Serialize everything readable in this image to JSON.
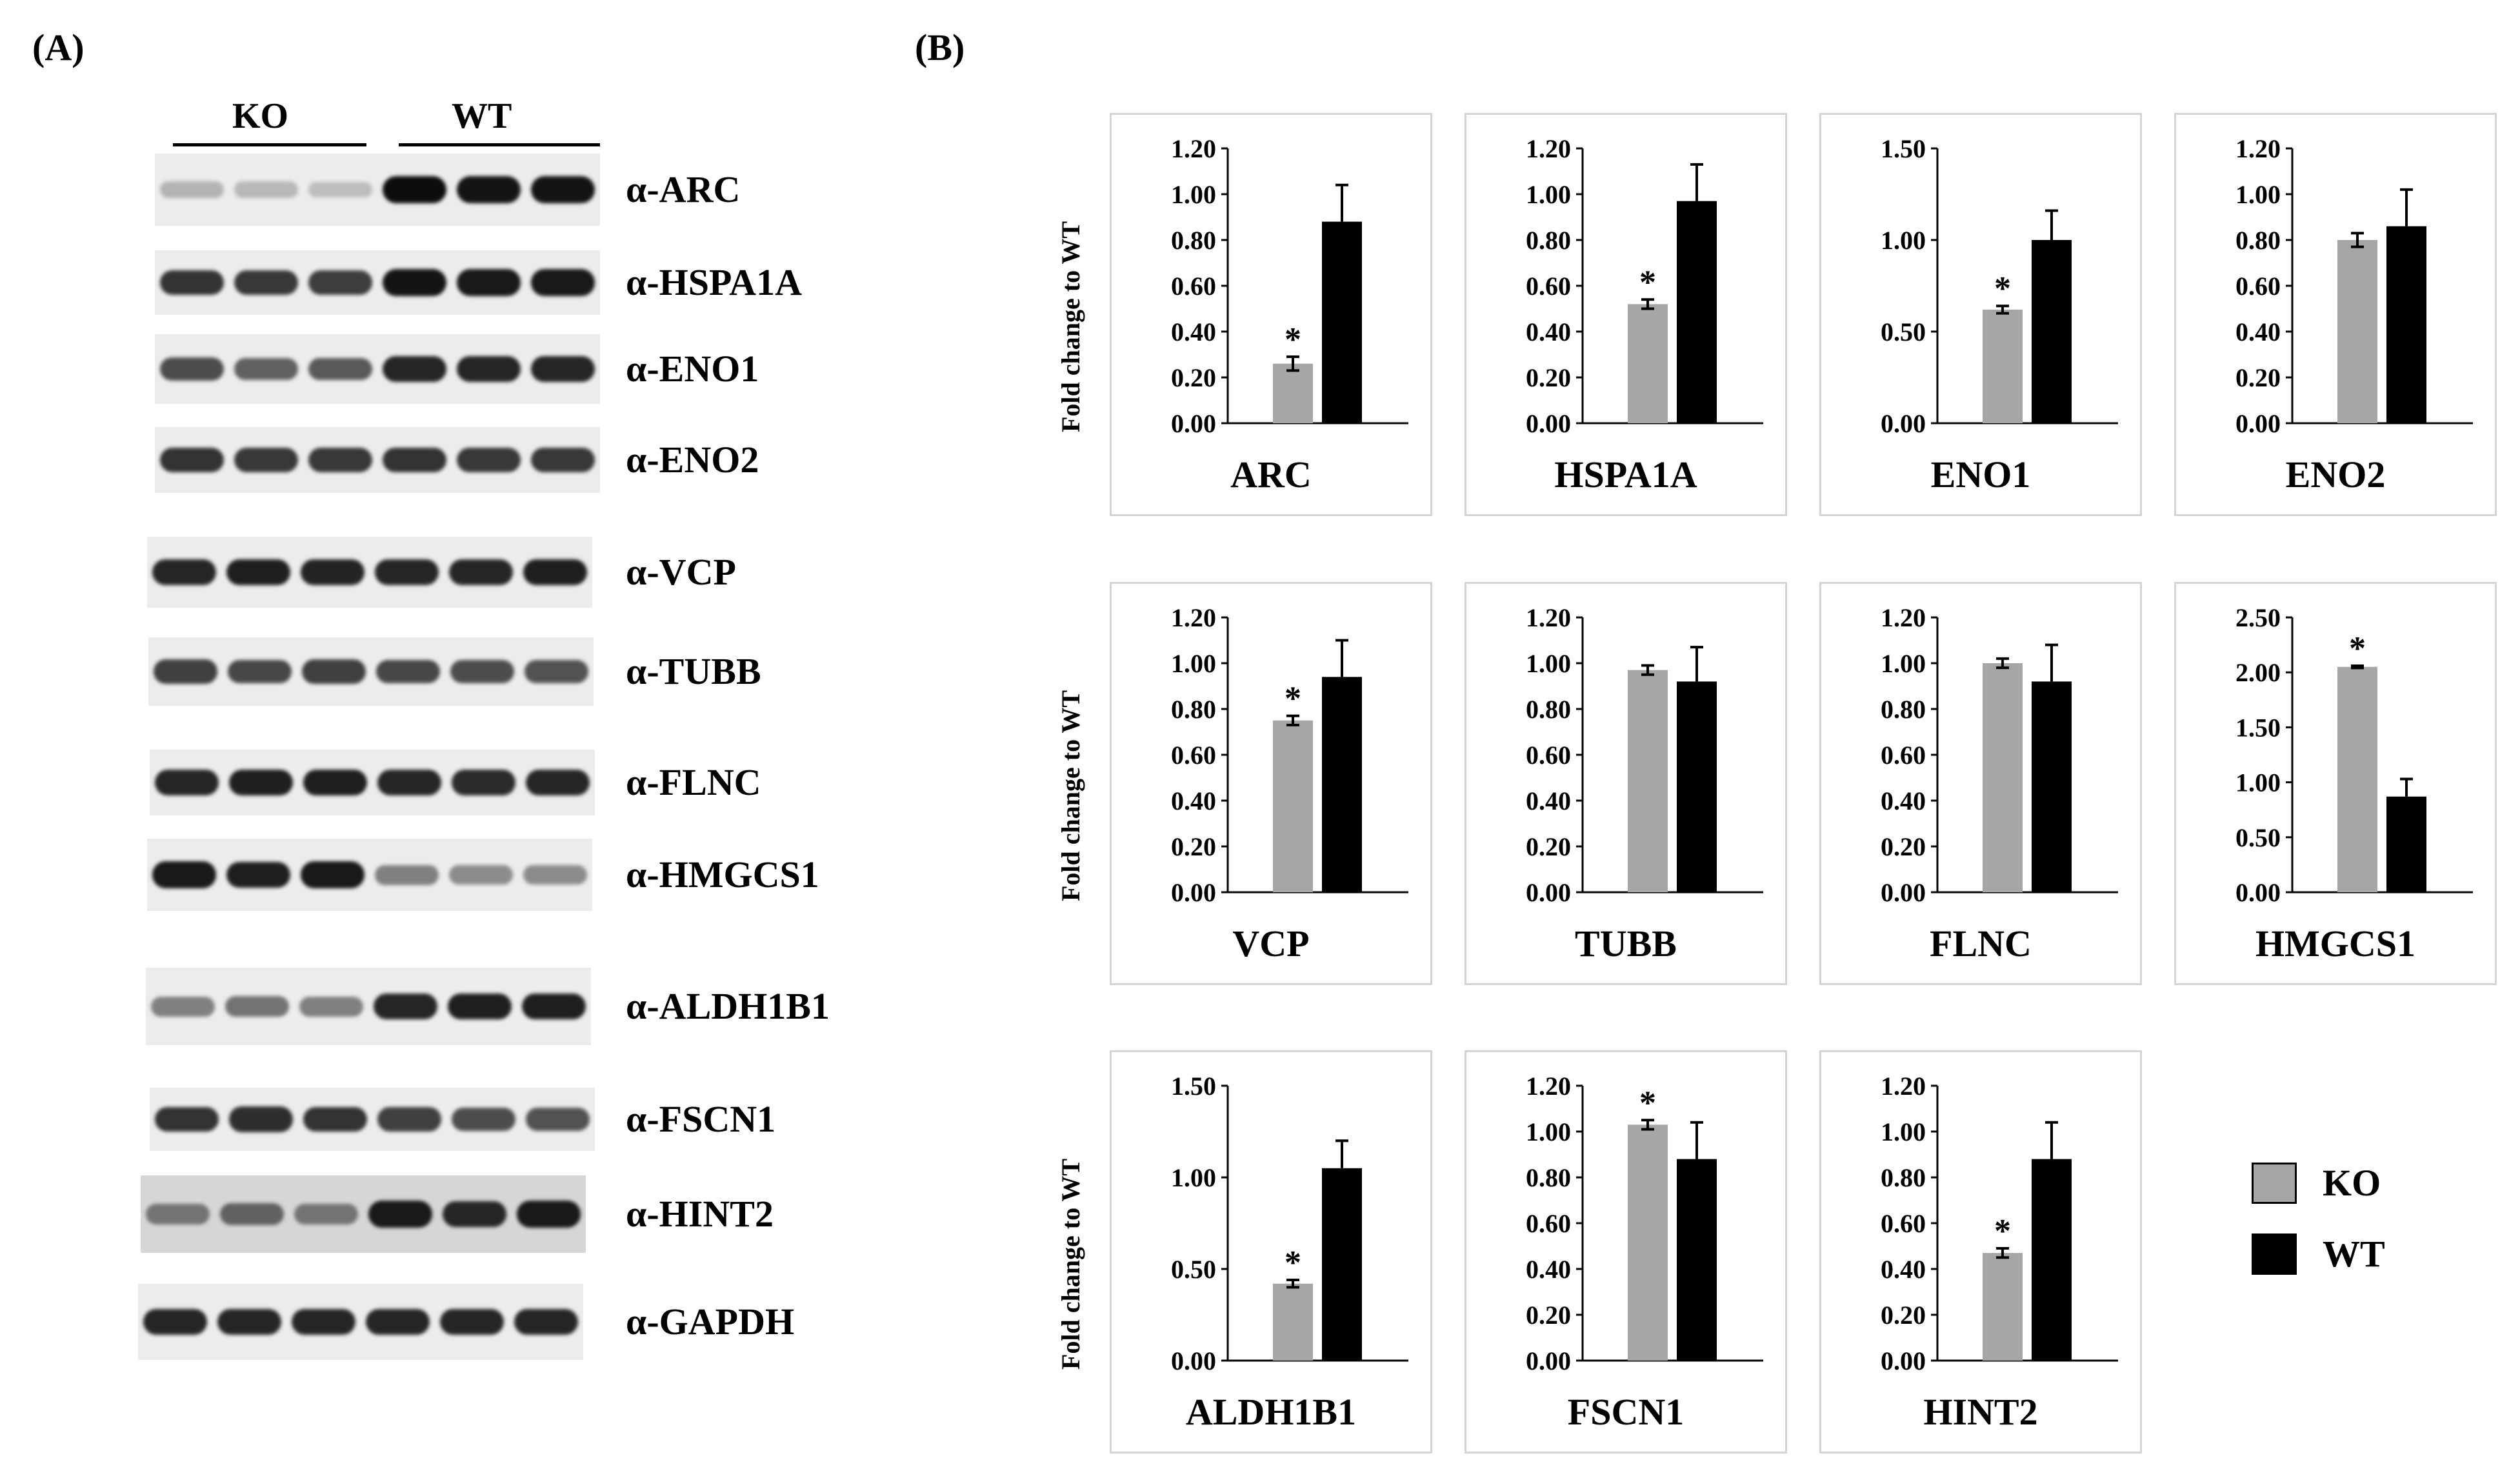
{
  "panels": {
    "a": "(A)",
    "b": "(B)"
  },
  "blot": {
    "groups": [
      "KO",
      "WT"
    ],
    "rows": [
      {
        "label": "α-ARC",
        "intensities": [
          0.3,
          0.28,
          0.26,
          0.95,
          0.92,
          0.92
        ]
      },
      {
        "label": "α-HSPA1A",
        "intensities": [
          0.8,
          0.78,
          0.76,
          0.92,
          0.9,
          0.9
        ]
      },
      {
        "label": "α-ENO1",
        "intensities": [
          0.7,
          0.62,
          0.65,
          0.85,
          0.85,
          0.85
        ]
      },
      {
        "label": "α-ENO2",
        "intensities": [
          0.8,
          0.78,
          0.78,
          0.8,
          0.78,
          0.78
        ]
      },
      {
        "label": "α-VCP",
        "intensities": [
          0.85,
          0.88,
          0.86,
          0.85,
          0.85,
          0.88
        ]
      },
      {
        "label": "α-TUBB",
        "intensities": [
          0.75,
          0.72,
          0.75,
          0.72,
          0.7,
          0.68
        ]
      },
      {
        "label": "α-FLNC",
        "intensities": [
          0.85,
          0.88,
          0.88,
          0.85,
          0.83,
          0.85
        ]
      },
      {
        "label": "α-HMGCS1",
        "intensities": [
          0.9,
          0.88,
          0.9,
          0.5,
          0.45,
          0.45
        ]
      },
      {
        "label": "α-ALDH1B1",
        "intensities": [
          0.5,
          0.55,
          0.5,
          0.85,
          0.88,
          0.88
        ]
      },
      {
        "label": "α-FSCN1",
        "intensities": [
          0.8,
          0.82,
          0.8,
          0.75,
          0.7,
          0.68
        ]
      },
      {
        "label": "α-HINT2",
        "intensities": [
          0.55,
          0.62,
          0.55,
          0.9,
          0.85,
          0.9
        ]
      },
      {
        "label": "α-GAPDH",
        "intensities": [
          0.85,
          0.85,
          0.85,
          0.85,
          0.85,
          0.85
        ]
      }
    ]
  },
  "y_axis_label": "Fold change to WT",
  "legend": {
    "items": [
      {
        "label": "KO",
        "color": "#a6a6a6"
      },
      {
        "label": "WT",
        "color": "#000000"
      }
    ]
  },
  "chart_data": [
    {
      "type": "bar",
      "title": "ARC",
      "ylim": [
        0,
        1.2
      ],
      "ticks": [
        "0.00",
        "0.20",
        "0.40",
        "0.60",
        "0.80",
        "1.00",
        "1.20"
      ],
      "categories": [
        "KO",
        "WT"
      ],
      "values": [
        0.26,
        0.88
      ],
      "errors": [
        0.03,
        0.16
      ],
      "significant": [
        true,
        false
      ],
      "star": "*"
    },
    {
      "type": "bar",
      "title": "HSPA1A",
      "ylim": [
        0,
        1.2
      ],
      "ticks": [
        "0.00",
        "0.20",
        "0.40",
        "0.60",
        "0.80",
        "1.00",
        "1.20"
      ],
      "categories": [
        "KO",
        "WT"
      ],
      "values": [
        0.52,
        0.97
      ],
      "errors": [
        0.02,
        0.16
      ],
      "significant": [
        true,
        false
      ],
      "star": "*"
    },
    {
      "type": "bar",
      "title": "ENO1",
      "ylim": [
        0,
        1.5
      ],
      "ticks": [
        "0.00",
        "0.50",
        "1.00",
        "1.50"
      ],
      "categories": [
        "KO",
        "WT"
      ],
      "values": [
        0.62,
        1.0
      ],
      "errors": [
        0.02,
        0.16
      ],
      "significant": [
        true,
        false
      ],
      "star": "*"
    },
    {
      "type": "bar",
      "title": "ENO2",
      "ylim": [
        0,
        1.2
      ],
      "ticks": [
        "0.00",
        "0.20",
        "0.40",
        "0.60",
        "0.80",
        "1.00",
        "1.20"
      ],
      "categories": [
        "KO",
        "WT"
      ],
      "values": [
        0.8,
        0.86
      ],
      "errors": [
        0.03,
        0.16
      ],
      "significant": [
        false,
        false
      ],
      "star": "*"
    },
    {
      "type": "bar",
      "title": "VCP",
      "ylim": [
        0,
        1.2
      ],
      "ticks": [
        "0.00",
        "0.20",
        "0.40",
        "0.60",
        "0.80",
        "1.00",
        "1.20"
      ],
      "categories": [
        "KO",
        "WT"
      ],
      "values": [
        0.75,
        0.94
      ],
      "errors": [
        0.02,
        0.16
      ],
      "significant": [
        true,
        false
      ],
      "star": "*"
    },
    {
      "type": "bar",
      "title": "TUBB",
      "ylim": [
        0,
        1.2
      ],
      "ticks": [
        "0.00",
        "0.20",
        "0.40",
        "0.60",
        "0.80",
        "1.00",
        "1.20"
      ],
      "categories": [
        "KO",
        "WT"
      ],
      "values": [
        0.97,
        0.92
      ],
      "errors": [
        0.02,
        0.15
      ],
      "significant": [
        false,
        false
      ],
      "star": "*"
    },
    {
      "type": "bar",
      "title": "FLNC",
      "ylim": [
        0,
        1.2
      ],
      "ticks": [
        "0.00",
        "0.20",
        "0.40",
        "0.60",
        "0.80",
        "1.00",
        "1.20"
      ],
      "categories": [
        "KO",
        "WT"
      ],
      "values": [
        1.0,
        0.92
      ],
      "errors": [
        0.02,
        0.16
      ],
      "significant": [
        false,
        false
      ],
      "star": "*"
    },
    {
      "type": "bar",
      "title": "HMGCS1",
      "ylim": [
        0,
        2.5
      ],
      "ticks": [
        "0.00",
        "0.50",
        "1.00",
        "1.50",
        "2.00",
        "2.50"
      ],
      "categories": [
        "KO",
        "WT"
      ],
      "values": [
        2.05,
        0.87
      ],
      "errors": [
        0.01,
        0.16
      ],
      "significant": [
        true,
        false
      ],
      "star": "*"
    },
    {
      "type": "bar",
      "title": "ALDH1B1",
      "ylim": [
        0,
        1.5
      ],
      "ticks": [
        "0.00",
        "0.50",
        "1.00",
        "1.50"
      ],
      "categories": [
        "KO",
        "WT"
      ],
      "values": [
        0.42,
        1.05
      ],
      "errors": [
        0.02,
        0.15
      ],
      "significant": [
        true,
        false
      ],
      "star": "*"
    },
    {
      "type": "bar",
      "title": "FSCN1",
      "ylim": [
        0,
        1.2
      ],
      "ticks": [
        "0.00",
        "0.20",
        "0.40",
        "0.60",
        "0.80",
        "1.00",
        "1.20"
      ],
      "categories": [
        "KO",
        "WT"
      ],
      "values": [
        1.03,
        0.88
      ],
      "errors": [
        0.02,
        0.16
      ],
      "significant": [
        true,
        false
      ],
      "star": "*"
    },
    {
      "type": "bar",
      "title": "HINT2",
      "ylim": [
        0,
        1.2
      ],
      "ticks": [
        "0.00",
        "0.20",
        "0.40",
        "0.60",
        "0.80",
        "1.00",
        "1.20"
      ],
      "categories": [
        "KO",
        "WT"
      ],
      "values": [
        0.47,
        0.88
      ],
      "errors": [
        0.02,
        0.16
      ],
      "significant": [
        true,
        false
      ],
      "star": "*"
    }
  ]
}
